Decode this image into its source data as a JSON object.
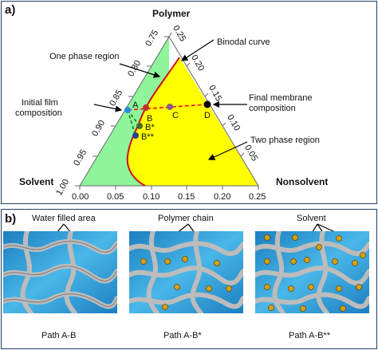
{
  "panel_a": {
    "panel_letter": "a)",
    "vertex_top": "Polymer",
    "vertex_left": "Solvent",
    "vertex_right": "Nonsolvent",
    "left_ticks": [
      "0.75",
      "0.80",
      "0.85",
      "0.90",
      "0.95",
      "1.00"
    ],
    "right_ticks": [
      "0.25",
      "0.20",
      "0.15",
      "0.10",
      "0.05"
    ],
    "bottom_ticks": [
      "0.00",
      "0.05",
      "0.10",
      "0.15",
      "0.20",
      "0.25"
    ],
    "labels": {
      "one_phase": "One phase region",
      "binodal": "Binodal curve",
      "initial_film_line1": "Initial film",
      "initial_film_line2": "composition",
      "final_membrane_line1": "Final membrane",
      "final_membrane_line2": "composition",
      "two_phase": "Two phase region"
    },
    "points": {
      "A": "A",
      "B": "B",
      "B_star": "B*",
      "B_double_star": "B**",
      "C": "C",
      "D": "D"
    },
    "colors": {
      "one_phase_fill": "#8ef59a",
      "two_phase_fill": "#ffff00",
      "binodal": "#cc1111",
      "path_dash": "#ee1111",
      "path_green": "#1a7a1a",
      "point_A": "#2a8bd8",
      "point_B": "#c03030",
      "point_Bstar": "#4a6a2a",
      "point_Bdstar": "#2a3f8f",
      "point_C": "#8a5a8a",
      "point_D": "#000000"
    }
  },
  "panel_b": {
    "panel_letter": "b)",
    "labels": {
      "water_filled": "Water filled area",
      "polymer_chain": "Polymer chain",
      "solvent": "Solvent"
    },
    "paths": [
      "Path A-B",
      "Path A-B*",
      "Path A-B**"
    ],
    "colors": {
      "water": "#2e9fd6",
      "polymer_chain": "#b8b8b8",
      "solvent_bead": "#d4a017"
    }
  }
}
